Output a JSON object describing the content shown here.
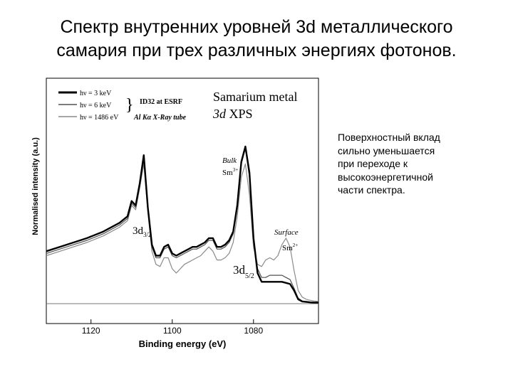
{
  "slide": {
    "title_line1": "Спектр внутренних уровней 3d металлического",
    "title_line2": "самария при трех различных энергиях фотонов.",
    "note_lines": [
      "Поверхностный вклад",
      "сильно уменьшается",
      "при переходе к",
      "высокоэнергетичной",
      "части спектра."
    ]
  },
  "chart_data": {
    "type": "line",
    "title": "Samarium metal",
    "subtitle": "3d XPS",
    "xlabel": "Binding energy (eV)",
    "ylabel": "Normalised intensity (a.u.)",
    "xlim": [
      1131,
      1064
    ],
    "ylim": [
      0,
      1
    ],
    "x_reversed": true,
    "x_ticks": [
      "1120",
      "1100",
      "1080"
    ],
    "x_tick_values": [
      1120,
      1100,
      1080
    ],
    "legend": {
      "position": "top-left",
      "entries": [
        "hν = 3 keV",
        "hν = 6 keV",
        "hν = 1486 eV"
      ],
      "group_note": "ID32 at ESRF",
      "source_note": "Al Kα X-Ray tube"
    },
    "annotations": {
      "peak_32": "3d",
      "peak_32_sub": "3/2",
      "peak_52": "3d",
      "peak_52_sub": "5/2",
      "bulk": "Bulk",
      "bulk_ion": "Sm",
      "bulk_sup": "3+",
      "surface": "Surface",
      "surface_ion": "Sm",
      "surface_sup": "2+"
    },
    "series": [
      {
        "name": "hν = 3 keV",
        "color": "#000000",
        "width": 2.4,
        "x": [
          1131,
          1126,
          1121,
          1117,
          1113,
          1111,
          1110,
          1109,
          1108,
          1107,
          1106,
          1105,
          1104,
          1103,
          1102,
          1101,
          1100,
          1099,
          1098,
          1097,
          1096,
          1095,
          1094,
          1093,
          1092,
          1091,
          1090,
          1089,
          1088,
          1087,
          1086,
          1085,
          1084,
          1083,
          1082,
          1081,
          1080,
          1079,
          1078,
          1077,
          1076,
          1075,
          1074,
          1073,
          1072,
          1071,
          1070,
          1069,
          1068,
          1067,
          1066,
          1065,
          1064
        ],
        "y": [
          0.24,
          0.27,
          0.3,
          0.33,
          0.37,
          0.4,
          0.47,
          0.45,
          0.55,
          0.68,
          0.44,
          0.27,
          0.22,
          0.22,
          0.26,
          0.27,
          0.23,
          0.22,
          0.23,
          0.24,
          0.25,
          0.26,
          0.26,
          0.27,
          0.28,
          0.3,
          0.3,
          0.26,
          0.26,
          0.27,
          0.29,
          0.33,
          0.45,
          0.65,
          0.72,
          0.6,
          0.3,
          0.14,
          0.1,
          0.1,
          0.1,
          0.1,
          0.1,
          0.1,
          0.095,
          0.09,
          0.06,
          0.02,
          0.01,
          0.008,
          0.006,
          0.005,
          0.005
        ]
      },
      {
        "name": "hν = 6 keV",
        "color": "#505050",
        "width": 1.2,
        "x": [
          1131,
          1126,
          1121,
          1117,
          1113,
          1111,
          1110,
          1109,
          1108,
          1107,
          1106,
          1105,
          1104,
          1103,
          1102,
          1101,
          1100,
          1099,
          1098,
          1097,
          1096,
          1095,
          1094,
          1093,
          1092,
          1091,
          1090,
          1089,
          1088,
          1087,
          1086,
          1085,
          1084,
          1083,
          1082,
          1081,
          1080,
          1079,
          1078,
          1077,
          1076,
          1075,
          1074,
          1073,
          1072,
          1071,
          1070,
          1069,
          1068,
          1067,
          1066,
          1065,
          1064
        ],
        "y": [
          0.23,
          0.26,
          0.29,
          0.32,
          0.36,
          0.39,
          0.46,
          0.44,
          0.54,
          0.67,
          0.43,
          0.26,
          0.21,
          0.21,
          0.25,
          0.26,
          0.22,
          0.21,
          0.22,
          0.23,
          0.24,
          0.25,
          0.25,
          0.26,
          0.27,
          0.29,
          0.29,
          0.25,
          0.25,
          0.26,
          0.28,
          0.32,
          0.44,
          0.64,
          0.71,
          0.58,
          0.3,
          0.16,
          0.12,
          0.12,
          0.13,
          0.13,
          0.13,
          0.13,
          0.12,
          0.11,
          0.07,
          0.025,
          0.012,
          0.008,
          0.006,
          0.005,
          0.005
        ]
      },
      {
        "name": "hν = 1486 eV",
        "color": "#8a8a8a",
        "width": 1.2,
        "x": [
          1131,
          1126,
          1121,
          1117,
          1113,
          1111,
          1110,
          1109,
          1108,
          1107,
          1106,
          1105,
          1104,
          1103,
          1102,
          1101,
          1100,
          1099,
          1098,
          1097,
          1096,
          1095,
          1094,
          1093,
          1092,
          1091,
          1090,
          1089,
          1088,
          1087,
          1086,
          1085,
          1084,
          1083,
          1082,
          1081,
          1080,
          1079,
          1078,
          1077,
          1076,
          1075,
          1074,
          1073,
          1072,
          1071,
          1070,
          1069,
          1068,
          1067,
          1066,
          1065,
          1064
        ],
        "y": [
          0.22,
          0.25,
          0.28,
          0.31,
          0.35,
          0.38,
          0.45,
          0.43,
          0.53,
          0.64,
          0.42,
          0.24,
          0.18,
          0.17,
          0.21,
          0.21,
          0.16,
          0.14,
          0.16,
          0.18,
          0.19,
          0.2,
          0.21,
          0.22,
          0.24,
          0.26,
          0.24,
          0.2,
          0.2,
          0.21,
          0.23,
          0.28,
          0.4,
          0.58,
          0.64,
          0.5,
          0.26,
          0.18,
          0.17,
          0.2,
          0.21,
          0.2,
          0.22,
          0.27,
          0.3,
          0.26,
          0.15,
          0.06,
          0.03,
          0.02,
          0.015,
          0.012,
          0.01
        ]
      }
    ]
  }
}
